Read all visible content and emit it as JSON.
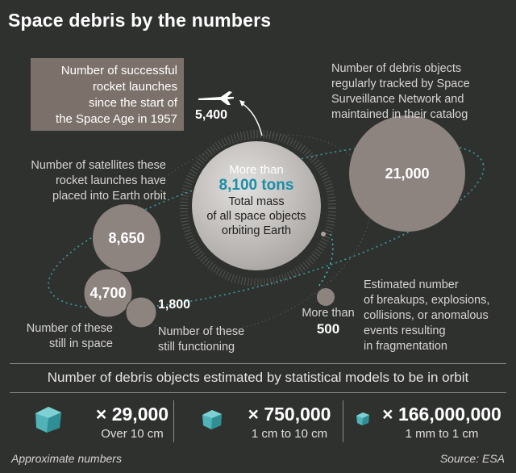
{
  "title": "Space debris by the numbers",
  "launches": {
    "label": "Number of successful\nrocket launches\nsince the start of\nthe Space Age in 1957",
    "value": "5,400"
  },
  "satellites": {
    "label": "Number of satellites these\nrocket launches have\nplaced into Earth orbit",
    "value": "8,650"
  },
  "in_space": {
    "label": "Number of these\nstill in space",
    "value": "4,700"
  },
  "functioning": {
    "label": "Number of these\nstill functioning",
    "value": "1,800"
  },
  "mass": {
    "prefix": "More than",
    "value": "8,100 tons",
    "description": "Total mass\nof all space objects\norbiting Earth"
  },
  "tracked": {
    "label": "Number of debris objects\nregularly tracked by Space\nSurveillance Network and\nmaintained in their catalog",
    "value": "21,000"
  },
  "fragmentation": {
    "prefix": "More than",
    "value": "500",
    "label": "Estimated number\nof breakups, explosions,\ncollisions, or anomalous\nevents resulting\nin fragmentation"
  },
  "statistical": {
    "header": "Number of debris objects estimated by statistical models to be in orbit",
    "items": [
      {
        "count": "× 29,000",
        "size": "Over 10 cm"
      },
      {
        "count": "× 750,000",
        "size": "1 cm to 10 cm"
      },
      {
        "count": "× 166,000,000",
        "size": "1 mm to 1 cm"
      }
    ]
  },
  "footer": {
    "note": "Approximate numbers",
    "source": "Source: ESA"
  },
  "colors": {
    "background": "#2f312f",
    "circle": "#8d8480",
    "center_circle": "#cfcdcb",
    "accent_teal": "#3fb8be",
    "label_box": "#7c716a"
  },
  "icons": {
    "plane": "rocket-plane-icon",
    "debris": "debris-cube-icon"
  }
}
